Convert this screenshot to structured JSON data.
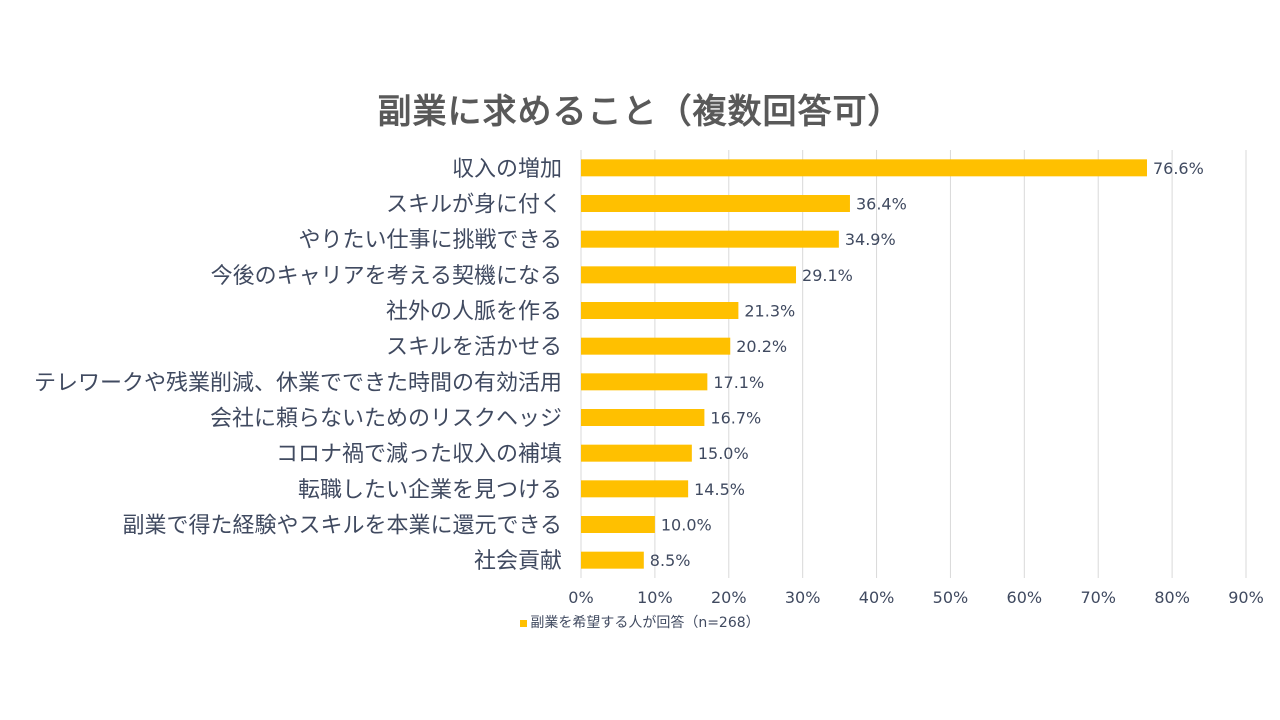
{
  "chart_data": {
    "type": "bar",
    "orientation": "horizontal",
    "title": "副業に求めること（複数回答可）",
    "categories": [
      "収入の増加",
      "スキルが身に付く",
      "やりたい仕事に挑戦できる",
      "今後のキャリアを考える契機になる",
      "社外の人脈を作る",
      "スキルを活かせる",
      "テレワークや残業削減、休業でできた時間の有効活用",
      "会社に頼らないためのリスクヘッジ",
      "コロナ禍で減った収入の補填",
      "転職したい企業を見つける",
      "副業で得た経験やスキルを本業に還元できる",
      "社会貢献"
    ],
    "series": [
      {
        "name": "副業を希望する人が回答（n=268）",
        "values": [
          76.6,
          36.4,
          34.9,
          29.1,
          21.3,
          20.2,
          17.1,
          16.7,
          15.0,
          14.5,
          10.0,
          8.5
        ],
        "labels": [
          "76.6%",
          "36.4%",
          "34.9%",
          "29.1%",
          "21.3%",
          "20.2%",
          "17.1%",
          "16.7%",
          "15.0%",
          "14.5%",
          "10.0%",
          "8.5%"
        ],
        "color": "#FFC000"
      }
    ],
    "xlim": [
      0,
      90
    ],
    "xticks": [
      0,
      10,
      20,
      30,
      40,
      50,
      60,
      70,
      80,
      90
    ],
    "xtick_labels": [
      "0%",
      "10%",
      "20%",
      "30%",
      "40%",
      "50%",
      "60%",
      "70%",
      "80%",
      "90%"
    ],
    "grid": true,
    "legend_position": "bottom"
  },
  "colors": {
    "bar": "#FFC000",
    "grid": "#D9D9D9",
    "text": "#404A60",
    "title": "#595959"
  }
}
